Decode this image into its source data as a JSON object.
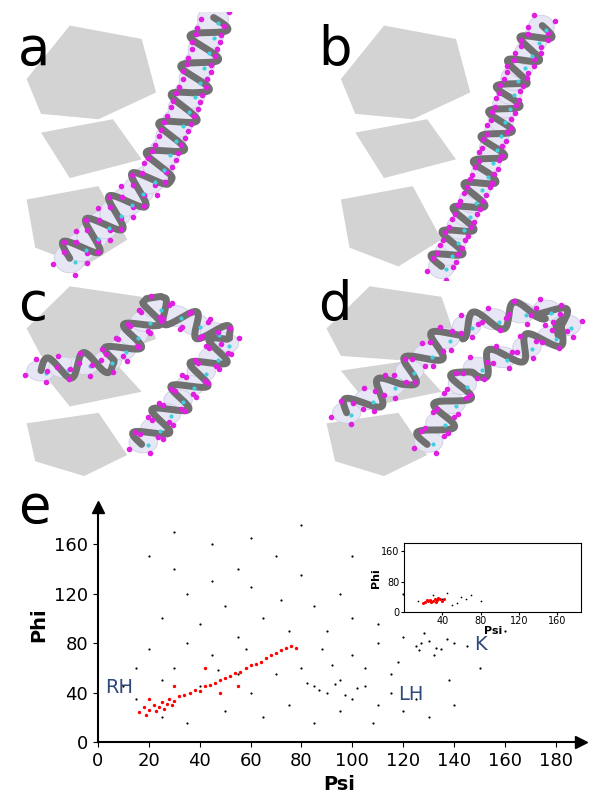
{
  "panel_labels": [
    "a",
    "b",
    "c",
    "d",
    "e"
  ],
  "chart_data": [
    {
      "type": "scatter",
      "xlabel": "Psi",
      "ylabel": "Phi",
      "xlim": [
        0,
        190
      ],
      "ylim": [
        0,
        190
      ],
      "xticks": [
        0,
        20,
        40,
        60,
        80,
        100,
        120,
        140,
        160,
        180
      ],
      "yticks": [
        0,
        40,
        80,
        120,
        160
      ],
      "annotations": [
        {
          "text": "RH",
          "x": 3,
          "y": 40
        },
        {
          "text": "LH",
          "x": 118,
          "y": 34
        },
        {
          "text": "K",
          "x": 148,
          "y": 74
        }
      ],
      "series": [
        {
          "color": "#000000",
          "marker": "dot",
          "x": [
            20,
            30,
            45,
            55,
            35,
            50,
            60,
            70,
            80,
            25,
            40,
            65,
            85,
            95,
            100,
            110,
            75,
            90,
            15,
            10,
            20,
            30,
            45,
            55,
            40,
            60,
            70,
            80,
            85,
            90,
            95,
            100,
            105,
            110,
            115,
            120,
            75,
            65,
            50,
            35,
            25,
            95,
            105,
            115,
            125,
            130,
            140,
            120,
            125,
            130,
            135,
            140,
            132,
            128,
            145,
            110,
            100,
            88,
            55,
            45,
            60,
            80,
            35,
            25,
            15,
            140,
            150,
            160,
            100,
            120,
            30,
            85,
            108,
            72,
            58,
            47,
            92,
            118,
            138,
            82,
            87,
            93,
            97,
            102,
            127,
            133,
            137,
            126
          ],
          "y": [
            150,
            170,
            160,
            140,
            120,
            110,
            125,
            150,
            135,
            100,
            95,
            100,
            110,
            120,
            150,
            95,
            90,
            90,
            60,
            45,
            75,
            60,
            70,
            55,
            45,
            40,
            55,
            60,
            45,
            40,
            50,
            35,
            45,
            30,
            40,
            25,
            30,
            20,
            25,
            15,
            20,
            25,
            60,
            55,
            35,
            20,
            30,
            85,
            78,
            82,
            75,
            80,
            70,
            88,
            78,
            80,
            70,
            75,
            85,
            130,
            165,
            175,
            80,
            50,
            35,
            110,
            60,
            90,
            100,
            120,
            140,
            15,
            15,
            115,
            75,
            58,
            62,
            65,
            50,
            48,
            42,
            47,
            38,
            44,
            80,
            76,
            83,
            74
          ]
        },
        {
          "color": "#ff0000",
          "marker": "dot",
          "x": [
            16,
            18,
            20,
            22,
            24,
            25,
            27,
            28,
            30,
            32,
            34,
            36,
            38,
            40,
            42,
            44,
            46,
            48,
            50,
            52,
            54,
            56,
            58,
            60,
            62,
            64,
            66,
            68,
            70,
            72,
            74,
            76,
            78,
            48,
            55,
            42,
            20,
            30,
            19,
            23,
            26,
            29
          ],
          "y": [
            24,
            28,
            26,
            30,
            28,
            32,
            31,
            35,
            33,
            37,
            38,
            40,
            42,
            41,
            45,
            46,
            48,
            50,
            52,
            53,
            56,
            57,
            60,
            62,
            63,
            65,
            68,
            70,
            72,
            74,
            76,
            78,
            76,
            40,
            45,
            60,
            35,
            45,
            22,
            25,
            27,
            30
          ]
        }
      ]
    },
    {
      "type": "scatter",
      "xlabel": "Psi",
      "ylabel": "Phi",
      "xlim": [
        0,
        185
      ],
      "ylim": [
        0,
        180
      ],
      "xticks": [
        40,
        80,
        120,
        160
      ],
      "yticks": [
        0,
        80,
        160
      ],
      "series": [
        {
          "color": "#000000",
          "marker": "dot",
          "x": [
            15,
            40,
            60,
            50,
            30,
            80,
            45,
            55,
            65,
            70
          ],
          "y": [
            30,
            35,
            40,
            20,
            45,
            30,
            50,
            25,
            35,
            45
          ]
        },
        {
          "color": "#ff0000",
          "marker": "dot",
          "x": [
            20,
            22,
            25,
            27,
            30,
            32,
            35,
            38,
            40,
            28,
            24,
            33,
            36,
            42
          ],
          "y": [
            25,
            28,
            30,
            32,
            30,
            34,
            33,
            35,
            30,
            27,
            32,
            28,
            38,
            36
          ]
        }
      ]
    }
  ]
}
